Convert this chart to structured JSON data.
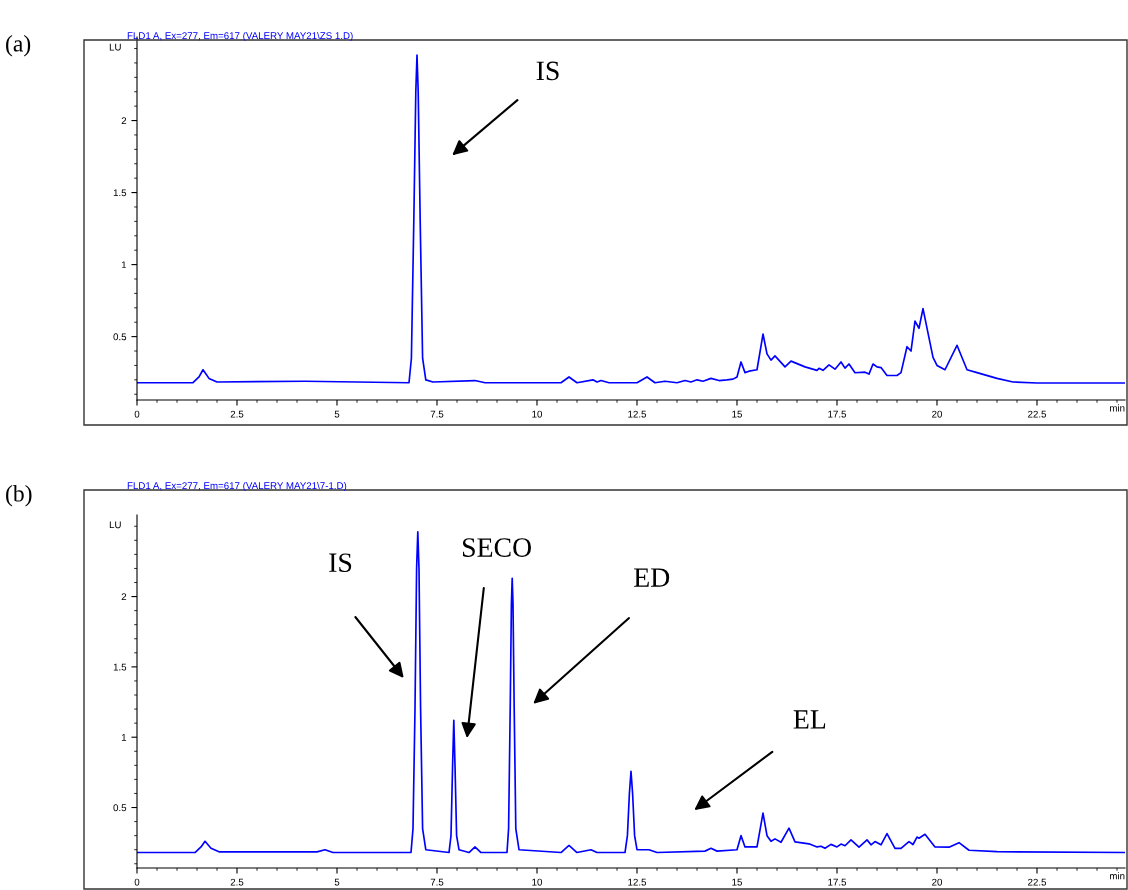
{
  "chart_data": [
    {
      "type": "line",
      "title": "(a)",
      "subtitle": "FLD1 A, Ex=277, Em=617 (VALERY MAY21\\ZS 1.D)",
      "xlabel": "min",
      "ylabel": "LU",
      "xlim": [
        0,
        24.7
      ],
      "ylim": [
        0.06,
        2.58
      ],
      "xticks": [
        0,
        {
          "value": 0.5,
          "label": null
        },
        {
          "value": 1,
          "label": null
        },
        {
          "value": 1.5,
          "label": null
        },
        {
          "value": 2,
          "label": null
        },
        2.5,
        {
          "value": 3,
          "label": null
        },
        {
          "value": 3.5,
          "label": null
        },
        {
          "value": 4,
          "label": null
        },
        {
          "value": 4.5,
          "label": null
        },
        5,
        {
          "value": 5.5,
          "label": null
        },
        {
          "value": 6,
          "label": null
        },
        {
          "value": 6.5,
          "label": null
        },
        {
          "value": 7,
          "label": null
        },
        7.5,
        {
          "value": 8,
          "label": null
        },
        {
          "value": 8.5,
          "label": null
        },
        {
          "value": 9,
          "label": null
        },
        {
          "value": 9.5,
          "label": null
        },
        10,
        {
          "value": 10.5,
          "label": null
        },
        {
          "value": 11,
          "label": null
        },
        {
          "value": 11.5,
          "label": null
        },
        {
          "value": 12,
          "label": null
        },
        12.5,
        {
          "value": 13,
          "label": null
        },
        {
          "value": 13.5,
          "label": null
        },
        {
          "value": 14,
          "label": null
        },
        {
          "value": 14.5,
          "label": null
        },
        15,
        {
          "value": 15.5,
          "label": null
        },
        {
          "value": 16,
          "label": null
        },
        {
          "value": 16.5,
          "label": null
        },
        {
          "value": 17,
          "label": null
        },
        17.5,
        {
          "value": 18,
          "label": null
        },
        {
          "value": 18.5,
          "label": null
        },
        {
          "value": 19,
          "label": null
        },
        {
          "value": 19.5,
          "label": null
        },
        20,
        {
          "value": 20.5,
          "label": null
        },
        {
          "value": 21,
          "label": null
        },
        {
          "value": 21.5,
          "label": null
        },
        {
          "value": 22,
          "label": null
        },
        22.5,
        {
          "value": 23,
          "label": null
        },
        {
          "value": 23.5,
          "label": null
        },
        {
          "value": 24,
          "label": null
        },
        {
          "value": 24.5,
          "label": null
        }
      ],
      "yticks": [
        {
          "value": 0.1,
          "label": null
        },
        {
          "value": 0.2,
          "label": null
        },
        {
          "value": 0.3,
          "label": null
        },
        {
          "value": 0.4,
          "label": null
        },
        0.5,
        {
          "value": 0.6,
          "label": null
        },
        {
          "value": 0.7,
          "label": null
        },
        {
          "value": 0.8,
          "label": null
        },
        {
          "value": 0.9,
          "label": null
        },
        1,
        {
          "value": 1.1,
          "label": null
        },
        {
          "value": 1.2,
          "label": null
        },
        {
          "value": 1.3,
          "label": null
        },
        {
          "value": 1.4,
          "label": null
        },
        1.5,
        {
          "value": 1.6,
          "label": null
        },
        {
          "value": 1.7,
          "label": null
        },
        {
          "value": 1.8,
          "label": null
        },
        {
          "value": 1.9,
          "label": null
        },
        2,
        {
          "value": 2.1,
          "label": null
        },
        {
          "value": 2.2,
          "label": null
        },
        {
          "value": 2.3,
          "label": null
        },
        {
          "value": 2.4,
          "label": null
        },
        {
          "value": 2.5,
          "label": null
        }
      ],
      "grid": false,
      "legend": false,
      "marker": "none",
      "line_style": "solid",
      "annotations": [
        "IS"
      ],
      "series": [
        {
          "color": "#0000ff",
          "x": [
            0,
            1.4,
            1.55,
            1.65,
            1.8,
            2.0,
            4.2,
            6.8,
            6.86,
            6.92,
            6.97,
            7.0,
            7.03,
            7.08,
            7.14,
            7.22,
            7.4,
            8.45,
            8.7,
            10.6,
            10.8,
            11.0,
            11.4,
            11.5,
            11.6,
            11.8,
            12.5,
            12.75,
            12.95,
            13.2,
            13.5,
            13.7,
            13.85,
            14.0,
            14.15,
            14.35,
            14.55,
            14.75,
            14.9,
            15.0,
            15.1,
            15.2,
            15.3,
            15.5,
            15.65,
            15.75,
            15.85,
            15.95,
            16.2,
            16.35,
            16.7,
            17.0,
            17.05,
            17.15,
            17.3,
            17.45,
            17.6,
            17.7,
            17.8,
            17.95,
            18.2,
            18.3,
            18.4,
            18.5,
            18.6,
            18.75,
            19.0,
            19.1,
            19.25,
            19.35,
            19.45,
            19.55,
            19.65,
            19.9,
            20.0,
            20.2,
            20.5,
            20.75,
            21.0,
            21.5,
            21.9,
            22.5,
            24.7
          ],
          "values": [
            0.18,
            0.18,
            0.22,
            0.27,
            0.21,
            0.185,
            0.19,
            0.18,
            0.35,
            1.3,
            2.2,
            2.455,
            2.2,
            1.3,
            0.35,
            0.2,
            0.185,
            0.195,
            0.18,
            0.18,
            0.22,
            0.18,
            0.2,
            0.185,
            0.195,
            0.18,
            0.18,
            0.22,
            0.18,
            0.19,
            0.18,
            0.195,
            0.185,
            0.2,
            0.19,
            0.21,
            0.195,
            0.2,
            0.205,
            0.22,
            0.324,
            0.25,
            0.26,
            0.27,
            0.518,
            0.38,
            0.337,
            0.366,
            0.29,
            0.33,
            0.29,
            0.266,
            0.28,
            0.266,
            0.304,
            0.274,
            0.324,
            0.281,
            0.31,
            0.249,
            0.253,
            0.24,
            0.31,
            0.29,
            0.285,
            0.23,
            0.23,
            0.25,
            0.43,
            0.4,
            0.608,
            0.558,
            0.694,
            0.356,
            0.3,
            0.27,
            0.44,
            0.27,
            0.25,
            0.21,
            0.185,
            0.178,
            0.178
          ]
        }
      ]
    },
    {
      "type": "line",
      "title": "(b)",
      "subtitle": "FLD1 A, Ex=277, Em=617 (VALERY MAY21\\7-1.D)",
      "xlabel": "min",
      "ylabel": "LU",
      "xlim": [
        0,
        24.7
      ],
      "ylim": [
        0.07,
        2.58
      ],
      "xticks": [
        0,
        {
          "value": 0.5,
          "label": null
        },
        {
          "value": 1,
          "label": null
        },
        {
          "value": 1.5,
          "label": null
        },
        {
          "value": 2,
          "label": null
        },
        2.5,
        {
          "value": 3,
          "label": null
        },
        {
          "value": 3.5,
          "label": null
        },
        {
          "value": 4,
          "label": null
        },
        {
          "value": 4.5,
          "label": null
        },
        5,
        {
          "value": 5.5,
          "label": null
        },
        {
          "value": 6,
          "label": null
        },
        {
          "value": 6.5,
          "label": null
        },
        {
          "value": 7,
          "label": null
        },
        7.5,
        {
          "value": 8,
          "label": null
        },
        {
          "value": 8.5,
          "label": null
        },
        {
          "value": 9,
          "label": null
        },
        {
          "value": 9.5,
          "label": null
        },
        10,
        {
          "value": 10.5,
          "label": null
        },
        {
          "value": 11,
          "label": null
        },
        {
          "value": 11.5,
          "label": null
        },
        {
          "value": 12,
          "label": null
        },
        12.5,
        {
          "value": 13,
          "label": null
        },
        {
          "value": 13.5,
          "label": null
        },
        {
          "value": 14,
          "label": null
        },
        {
          "value": 14.5,
          "label": null
        },
        15,
        {
          "value": 15.5,
          "label": null
        },
        {
          "value": 16,
          "label": null
        },
        {
          "value": 16.5,
          "label": null
        },
        {
          "value": 17,
          "label": null
        },
        17.5,
        {
          "value": 18,
          "label": null
        },
        {
          "value": 18.5,
          "label": null
        },
        {
          "value": 19,
          "label": null
        },
        {
          "value": 19.5,
          "label": null
        },
        20,
        {
          "value": 20.5,
          "label": null
        },
        {
          "value": 21,
          "label": null
        },
        {
          "value": 21.5,
          "label": null
        },
        {
          "value": 22,
          "label": null
        },
        22.5,
        {
          "value": 23,
          "label": null
        },
        {
          "value": 23.5,
          "label": null
        },
        {
          "value": 24,
          "label": null
        },
        {
          "value": 24.5,
          "label": null
        }
      ],
      "yticks": [
        {
          "value": 0.1,
          "label": null
        },
        {
          "value": 0.2,
          "label": null
        },
        {
          "value": 0.3,
          "label": null
        },
        {
          "value": 0.4,
          "label": null
        },
        0.5,
        {
          "value": 0.6,
          "label": null
        },
        {
          "value": 0.7,
          "label": null
        },
        {
          "value": 0.8,
          "label": null
        },
        {
          "value": 0.9,
          "label": null
        },
        1,
        {
          "value": 1.1,
          "label": null
        },
        {
          "value": 1.2,
          "label": null
        },
        {
          "value": 1.3,
          "label": null
        },
        {
          "value": 1.4,
          "label": null
        },
        1.5,
        {
          "value": 1.6,
          "label": null
        },
        {
          "value": 1.7,
          "label": null
        },
        {
          "value": 1.8,
          "label": null
        },
        {
          "value": 1.9,
          "label": null
        },
        2,
        {
          "value": 2.1,
          "label": null
        },
        {
          "value": 2.2,
          "label": null
        },
        {
          "value": 2.3,
          "label": null
        },
        {
          "value": 2.4,
          "label": null
        },
        {
          "value": 2.5,
          "label": null
        }
      ],
      "grid": false,
      "legend": false,
      "marker": "none",
      "line_style": "solid",
      "annotations": [
        "IS",
        "SECO",
        "ED",
        "EL"
      ],
      "series": [
        {
          "color": "#0000ff",
          "x": [
            0,
            1.45,
            1.6,
            1.7,
            1.85,
            2.05,
            4.5,
            4.7,
            4.9,
            6.85,
            6.9,
            6.95,
            6.99,
            7.02,
            7.05,
            7.09,
            7.14,
            7.22,
            7.8,
            7.85,
            7.89,
            7.92,
            7.95,
            7.99,
            8.05,
            8.3,
            8.45,
            8.6,
            9.25,
            9.29,
            9.33,
            9.36,
            9.38,
            9.4,
            9.43,
            9.47,
            9.55,
            10.6,
            10.8,
            11.0,
            11.35,
            11.5,
            12.2,
            12.26,
            12.31,
            12.35,
            12.39,
            12.44,
            12.5,
            12.8,
            13.0,
            14.2,
            14.35,
            14.5,
            15.0,
            15.1,
            15.2,
            15.3,
            15.5,
            15.65,
            15.75,
            15.85,
            15.95,
            16.1,
            16.3,
            16.45,
            16.8,
            17.0,
            17.1,
            17.2,
            17.35,
            17.5,
            17.6,
            17.7,
            17.85,
            18.05,
            18.25,
            18.35,
            18.45,
            18.6,
            18.75,
            18.95,
            19.1,
            19.3,
            19.4,
            19.5,
            19.55,
            19.7,
            19.95,
            20.3,
            20.55,
            20.8,
            21.5,
            24.7
          ],
          "values": [
            0.18,
            0.18,
            0.22,
            0.26,
            0.21,
            0.185,
            0.185,
            0.2,
            0.18,
            0.18,
            0.35,
            1.2,
            2.2,
            2.46,
            2.2,
            1.2,
            0.35,
            0.2,
            0.18,
            0.3,
            0.8,
            1.12,
            0.8,
            0.3,
            0.2,
            0.18,
            0.22,
            0.18,
            0.18,
            0.35,
            1.2,
            1.95,
            2.13,
            1.95,
            1.2,
            0.35,
            0.2,
            0.18,
            0.23,
            0.18,
            0.2,
            0.18,
            0.18,
            0.3,
            0.6,
            0.757,
            0.6,
            0.3,
            0.2,
            0.2,
            0.18,
            0.19,
            0.21,
            0.19,
            0.2,
            0.3,
            0.22,
            0.22,
            0.22,
            0.46,
            0.3,
            0.26,
            0.277,
            0.253,
            0.353,
            0.256,
            0.242,
            0.22,
            0.225,
            0.21,
            0.238,
            0.22,
            0.24,
            0.228,
            0.27,
            0.218,
            0.27,
            0.235,
            0.258,
            0.235,
            0.315,
            0.21,
            0.21,
            0.258,
            0.237,
            0.29,
            0.282,
            0.31,
            0.22,
            0.218,
            0.25,
            0.196,
            0.186,
            0.18
          ]
        }
      ]
    }
  ]
}
